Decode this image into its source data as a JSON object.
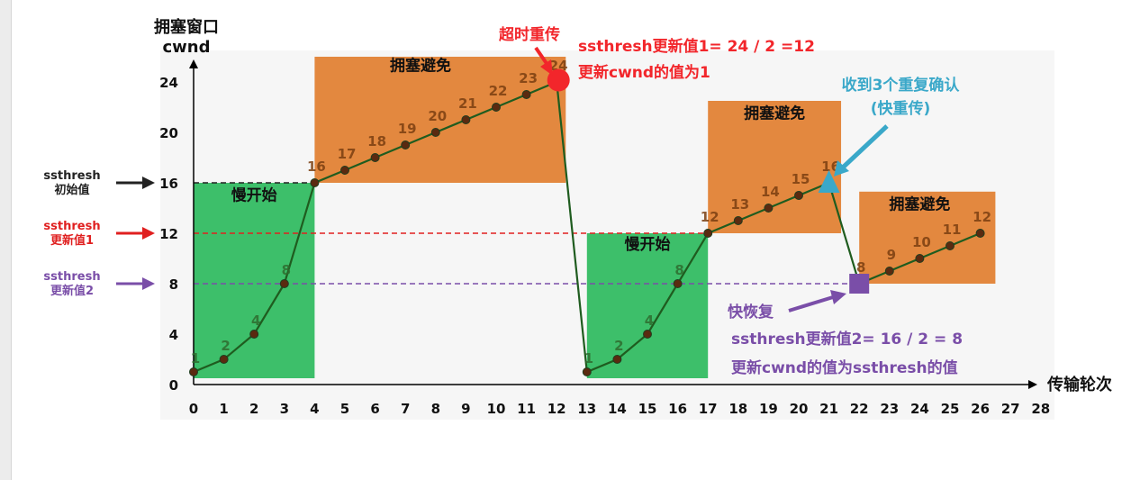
{
  "chart_data": {
    "type": "line",
    "ylabel": "拥塞窗口",
    "ylabel2": "cwnd",
    "xlabel": "传输轮次",
    "xlim": [
      0,
      28
    ],
    "ylim": [
      0,
      26
    ],
    "x_ticks": [
      0,
      1,
      2,
      3,
      4,
      5,
      6,
      7,
      8,
      9,
      10,
      11,
      12,
      13,
      14,
      15,
      16,
      17,
      18,
      19,
      20,
      21,
      22,
      23,
      24,
      25,
      26,
      27,
      28
    ],
    "y_ticks": [
      0,
      4,
      8,
      12,
      16,
      20,
      24
    ],
    "points": [
      {
        "x": 0,
        "y": 1,
        "label": "1"
      },
      {
        "x": 1,
        "y": 2,
        "label": "2"
      },
      {
        "x": 2,
        "y": 4,
        "label": "4"
      },
      {
        "x": 3,
        "y": 8,
        "label": "8"
      },
      {
        "x": 4,
        "y": 16,
        "label": "16"
      },
      {
        "x": 5,
        "y": 17,
        "label": "17"
      },
      {
        "x": 6,
        "y": 18,
        "label": "18"
      },
      {
        "x": 7,
        "y": 19,
        "label": "19"
      },
      {
        "x": 8,
        "y": 20,
        "label": "20"
      },
      {
        "x": 9,
        "y": 21,
        "label": "21"
      },
      {
        "x": 10,
        "y": 22,
        "label": "22"
      },
      {
        "x": 11,
        "y": 23,
        "label": "23"
      },
      {
        "x": 12,
        "y": 24,
        "label": "24"
      },
      {
        "x": 13,
        "y": 1,
        "label": "1"
      },
      {
        "x": 14,
        "y": 2,
        "label": "2"
      },
      {
        "x": 15,
        "y": 4,
        "label": "4"
      },
      {
        "x": 16,
        "y": 8,
        "label": "8"
      },
      {
        "x": 17,
        "y": 12,
        "label": "12"
      },
      {
        "x": 18,
        "y": 13,
        "label": "13"
      },
      {
        "x": 19,
        "y": 14,
        "label": "14"
      },
      {
        "x": 20,
        "y": 15,
        "label": "15"
      },
      {
        "x": 21,
        "y": 16,
        "label": "16"
      },
      {
        "x": 22,
        "y": 8,
        "label": "8"
      },
      {
        "x": 23,
        "y": 9,
        "label": "9"
      },
      {
        "x": 24,
        "y": 10,
        "label": "10"
      },
      {
        "x": 25,
        "y": 11,
        "label": "11"
      },
      {
        "x": 26,
        "y": 12,
        "label": "12"
      }
    ],
    "regions": [
      {
        "name": "slow-start-region-1",
        "label": "慢开始",
        "x0": 0,
        "x1": 4,
        "y0": 0.5,
        "y1": 16,
        "color": "#3dbf6a"
      },
      {
        "name": "congestion-avoidance-region-1",
        "label": "拥塞避免",
        "x0": 4,
        "x1": 12.3,
        "y0": 16,
        "y1": 26,
        "color": "#e3883f"
      },
      {
        "name": "slow-start-region-2",
        "label": "慢开始",
        "x0": 13,
        "x1": 17,
        "y0": 0.5,
        "y1": 12,
        "color": "#3dbf6a"
      },
      {
        "name": "congestion-avoidance-region-2",
        "label": "拥塞避免",
        "x0": 17,
        "x1": 21.4,
        "y0": 12,
        "y1": 22.5,
        "color": "#e3883f"
      },
      {
        "name": "congestion-avoidance-region-3",
        "label": "拥塞避免",
        "x0": 22,
        "x1": 26.5,
        "y0": 8,
        "y1": 15.3,
        "color": "#e3883f"
      }
    ],
    "thresholds": [
      {
        "name": "ssthresh-initial",
        "y": 16,
        "x_end": 4,
        "color": "#222222",
        "line1": "ssthresh",
        "line2": "初始值"
      },
      {
        "name": "ssthresh-update-1",
        "y": 12,
        "x_end": 17,
        "color": "#e02020",
        "line1": "ssthresh",
        "line2": "更新值1"
      },
      {
        "name": "ssthresh-update-2",
        "y": 8,
        "x_end": 22,
        "color": "#7a4ea8",
        "line1": "ssthresh",
        "line2": "更新值2"
      }
    ],
    "events": {
      "timeout": {
        "x": 12,
        "y": 24,
        "color": "#f2262b",
        "label": "超时重传",
        "note1": "ssthresh更新值1= 24 / 2 =12",
        "note2": "更新cwnd的值为1"
      },
      "triple_dup_ack": {
        "x": 21,
        "y": 16,
        "color": "#3aa8c9",
        "label1": "收到3个重复确认",
        "label2": "(快重传)"
      },
      "fast_recovery": {
        "x": 22,
        "y": 8,
        "color": "#7a4ea8",
        "label": "快恢复",
        "note1": "ssthresh更新值2= 16 / 2 = 8",
        "note2": "更新cwnd的值为ssthresh的值"
      }
    },
    "colors": {
      "line": "#1f5c1f",
      "axis": "#000000",
      "slow_start": "#3dbf6a",
      "congestion_avoidance": "#e3883f"
    }
  }
}
